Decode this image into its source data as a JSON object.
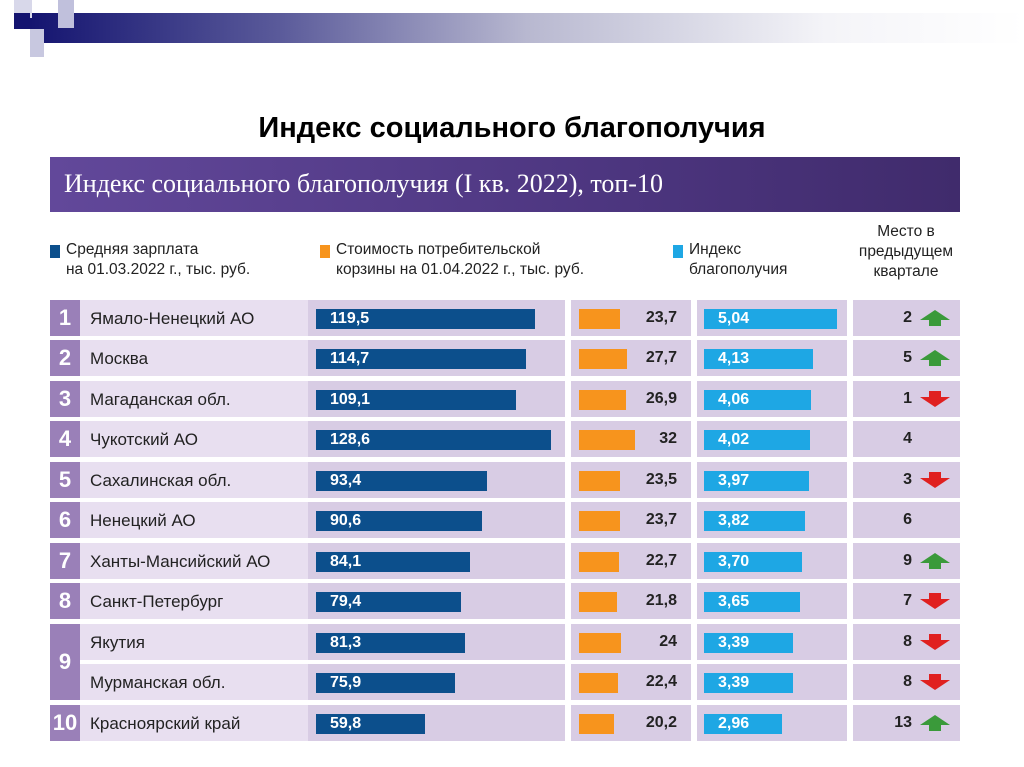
{
  "slide_title": "Индекс социального благополучия",
  "chart_data": {
    "type": "table",
    "title": "Индекс социального благополучия (I кв. 2022), топ-10",
    "columns": {
      "salary": "Средняя зарплата\nна 01.03.2022 г., тыс. руб.",
      "basket": "Стоимость потребительской\nкорзины на 01.04.2022 г., тыс. руб.",
      "index": "Индекс\nблагополучия",
      "prev_place": "Место в\nпредыдущем\nквартале"
    },
    "colors": {
      "salary": "#0c4f8c",
      "basket": "#f7941d",
      "index": "#1ea7e4",
      "up": "#3a9a3a",
      "down": "#e02020"
    },
    "rows": [
      {
        "rank": "1",
        "region": "Ямало-Ненецкий АО",
        "salary": 119.5,
        "salary_label": "119,5",
        "basket": 23.7,
        "basket_label": "23,7",
        "index": 5.04,
        "index_label": "5,04",
        "prev_place": "2",
        "trend": "up"
      },
      {
        "rank": "2",
        "region": "Москва",
        "salary": 114.7,
        "salary_label": "114,7",
        "basket": 27.7,
        "basket_label": "27,7",
        "index": 4.13,
        "index_label": "4,13",
        "prev_place": "5",
        "trend": "up"
      },
      {
        "rank": "3",
        "region": "Магаданская обл.",
        "salary": 109.1,
        "salary_label": "109,1",
        "basket": 26.9,
        "basket_label": "26,9",
        "index": 4.06,
        "index_label": "4,06",
        "prev_place": "1",
        "trend": "down"
      },
      {
        "rank": "4",
        "region": "Чукотский АО",
        "salary": 128.6,
        "salary_label": "128,6",
        "basket": 32,
        "basket_label": "32",
        "index": 4.02,
        "index_label": "4,02",
        "prev_place": "4",
        "trend": "none"
      },
      {
        "rank": "5",
        "region": "Сахалинская обл.",
        "salary": 93.4,
        "salary_label": "93,4",
        "basket": 23.5,
        "basket_label": "23,5",
        "index": 3.97,
        "index_label": "3,97",
        "prev_place": "3",
        "trend": "down"
      },
      {
        "rank": "6",
        "region": "Ненецкий АО",
        "salary": 90.6,
        "salary_label": "90,6",
        "basket": 23.7,
        "basket_label": "23,7",
        "index": 3.82,
        "index_label": "3,82",
        "prev_place": "6",
        "trend": "none"
      },
      {
        "rank": "7",
        "region": "Ханты-Мансийский АО",
        "salary": 84.1,
        "salary_label": "84,1",
        "basket": 22.7,
        "basket_label": "22,7",
        "index": 3.7,
        "index_label": "3,70",
        "prev_place": "9",
        "trend": "up"
      },
      {
        "rank": "8",
        "region": "Санкт-Петербург",
        "salary": 79.4,
        "salary_label": "79,4",
        "basket": 21.8,
        "basket_label": "21,8",
        "index": 3.65,
        "index_label": "3,65",
        "prev_place": "7",
        "trend": "down"
      },
      {
        "rank": "9",
        "region": "Якутия",
        "salary": 81.3,
        "salary_label": "81,3",
        "basket": 24,
        "basket_label": "24",
        "index": 3.39,
        "index_label": "3,39",
        "prev_place": "8",
        "trend": "down"
      },
      {
        "rank": "9",
        "region": "Мурманская обл.",
        "salary": 75.9,
        "salary_label": "75,9",
        "basket": 22.4,
        "basket_label": "22,4",
        "index": 3.39,
        "index_label": "3,39",
        "prev_place": "8",
        "trend": "down"
      },
      {
        "rank": "10",
        "region": "Красноярский край",
        "salary": 59.8,
        "salary_label": "59,8",
        "basket": 20.2,
        "basket_label": "20,2",
        "index": 2.96,
        "index_label": "2,96",
        "prev_place": "13",
        "trend": "up"
      }
    ]
  }
}
